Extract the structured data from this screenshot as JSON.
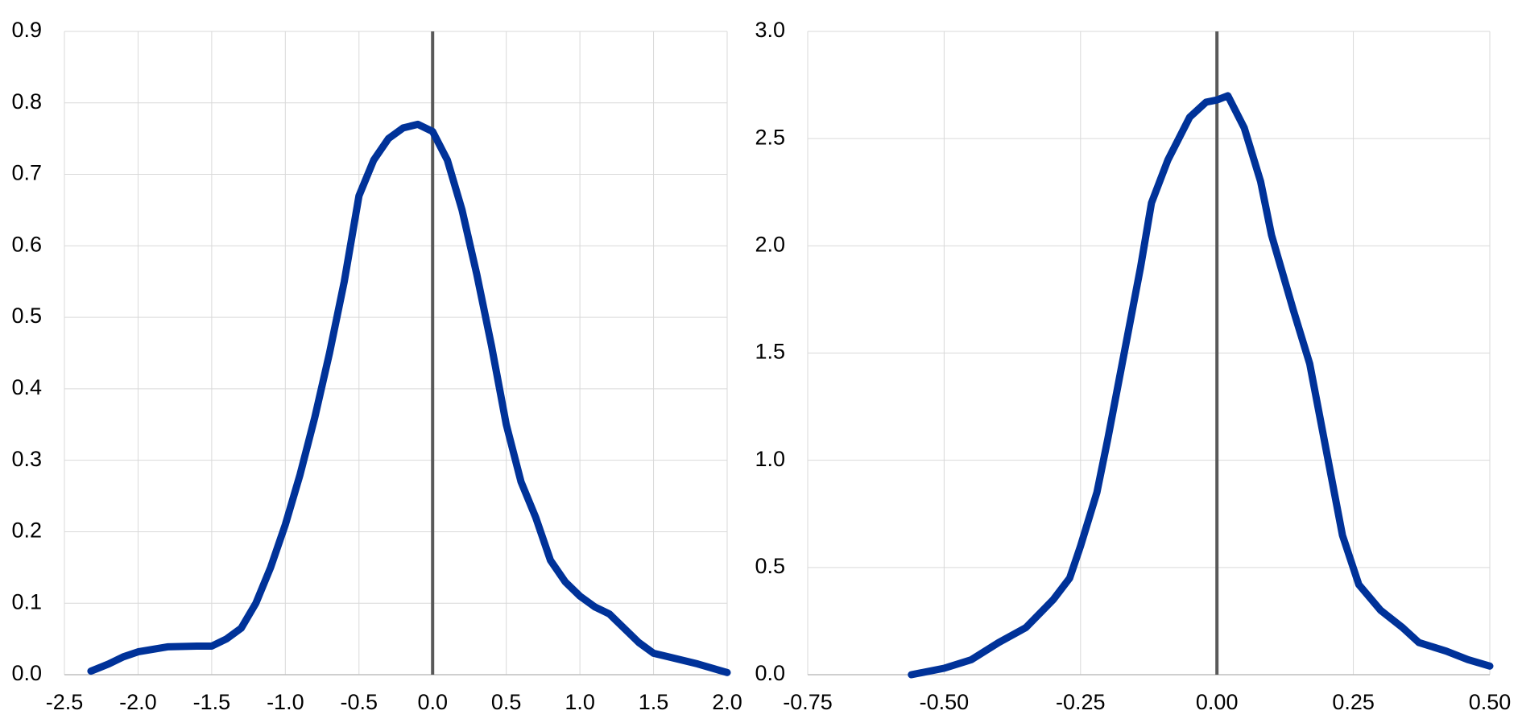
{
  "chart_data": [
    {
      "type": "line",
      "x": [
        -2.32,
        -2.2,
        -2.1,
        -2.0,
        -1.8,
        -1.6,
        -1.5,
        -1.4,
        -1.3,
        -1.2,
        -1.1,
        -1.0,
        -0.9,
        -0.8,
        -0.7,
        -0.6,
        -0.5,
        -0.4,
        -0.3,
        -0.2,
        -0.1,
        0.0,
        0.1,
        0.2,
        0.3,
        0.4,
        0.5,
        0.6,
        0.7,
        0.8,
        0.9,
        1.0,
        1.1,
        1.2,
        1.3,
        1.4,
        1.5,
        1.6,
        1.8,
        2.0
      ],
      "series": [
        {
          "color": "#003299",
          "values": [
            0.005,
            0.015,
            0.025,
            0.032,
            0.039,
            0.04,
            0.04,
            0.05,
            0.065,
            0.1,
            0.15,
            0.21,
            0.28,
            0.36,
            0.45,
            0.55,
            0.67,
            0.72,
            0.75,
            0.765,
            0.77,
            0.76,
            0.72,
            0.65,
            0.56,
            0.46,
            0.35,
            0.27,
            0.22,
            0.16,
            0.13,
            0.11,
            0.095,
            0.085,
            0.065,
            0.045,
            0.03,
            0.025,
            0.015,
            0.003
          ]
        }
      ],
      "xlim": [
        -2.5,
        2.0
      ],
      "xticks": [
        -2.5,
        {
          "value": -2,
          "label": "-2.0"
        },
        -1.5,
        {
          "value": -1,
          "label": "-1.0"
        },
        -0.5,
        {
          "value": 0,
          "label": "0.0"
        },
        0.5,
        {
          "value": 1,
          "label": "1.0"
        },
        1.5,
        {
          "value": 2,
          "label": "2.0"
        }
      ],
      "ylim": [
        0,
        0.9
      ],
      "yticks": [
        {
          "value": 0,
          "label": "0.0"
        },
        0.1,
        0.2,
        0.3,
        0.4,
        0.5,
        0.6,
        0.7,
        0.8,
        0.9
      ],
      "vline": 0,
      "grid": true
    },
    {
      "type": "line",
      "x": [
        -0.56,
        -0.5,
        -0.45,
        -0.4,
        -0.35,
        -0.3,
        -0.27,
        -0.25,
        -0.22,
        -0.2,
        -0.17,
        -0.14,
        -0.12,
        -0.09,
        -0.05,
        -0.02,
        0.0,
        0.02,
        0.05,
        0.08,
        0.1,
        0.14,
        0.17,
        0.2,
        0.23,
        0.26,
        0.3,
        0.34,
        0.37,
        0.42,
        0.46,
        0.5
      ],
      "series": [
        {
          "color": "#003299",
          "values": [
            0.0,
            0.03,
            0.07,
            0.15,
            0.22,
            0.35,
            0.45,
            0.6,
            0.85,
            1.1,
            1.5,
            1.9,
            2.2,
            2.4,
            2.6,
            2.67,
            2.68,
            2.7,
            2.55,
            2.3,
            2.05,
            1.7,
            1.45,
            1.05,
            0.65,
            0.42,
            0.3,
            0.22,
            0.15,
            0.11,
            0.07,
            0.04
          ]
        }
      ],
      "xlim": [
        -0.75,
        0.5
      ],
      "xticks": [
        -0.75,
        {
          "value": -0.5,
          "label": "-0.50"
        },
        -0.25,
        {
          "value": 0,
          "label": "0.00"
        },
        0.25,
        {
          "value": 0.5,
          "label": "0.50"
        }
      ],
      "ylim": [
        0,
        3.0
      ],
      "yticks": [
        {
          "value": 0,
          "label": "0.0"
        },
        0.5,
        {
          "value": 1,
          "label": "1.0"
        },
        1.5,
        {
          "value": 2,
          "label": "2.0"
        },
        2.5,
        {
          "value": 3,
          "label": "3.0"
        }
      ],
      "vline": 0,
      "grid": true
    }
  ]
}
